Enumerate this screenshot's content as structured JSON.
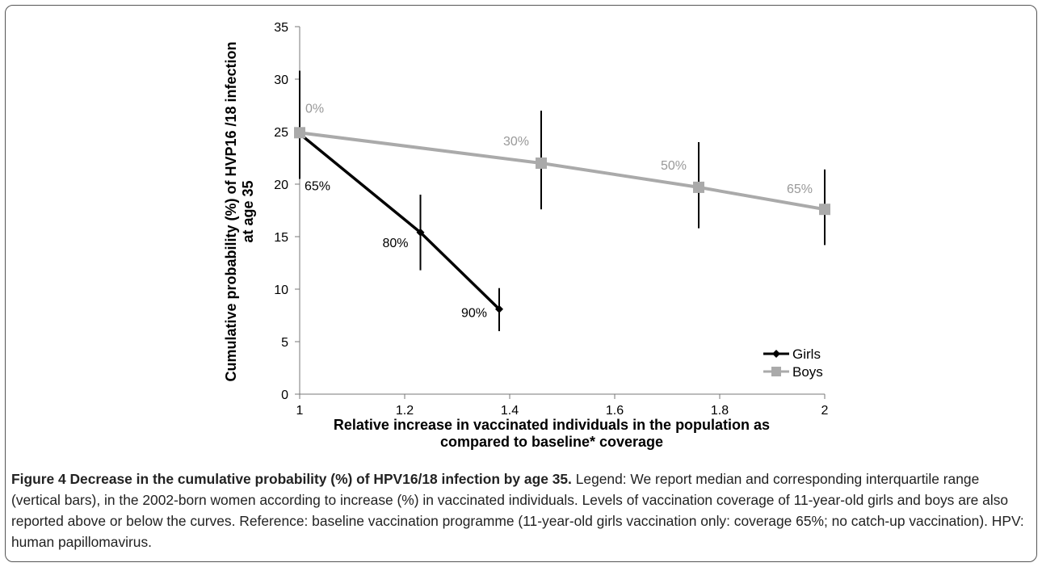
{
  "chart_data": {
    "type": "line",
    "xlabel": "Relative increase in vaccinated individuals in the  population as compared to baseline* coverage",
    "xlabel_lines": [
      "Relative increase in vaccinated individuals in the  population as",
      "compared to baseline* coverage"
    ],
    "ylabel": "Cumulative probability (%) of HVP16 /18 infection at age 35",
    "ylabel_lines": [
      "Cumulative probability (%) of HVP16 /18 infection",
      "at age 35"
    ],
    "xlim": [
      1,
      2
    ],
    "ylim": [
      0,
      35
    ],
    "x_ticks": [
      1,
      1.2,
      1.4,
      1.6,
      1.8,
      2
    ],
    "x_tick_labels": [
      "1",
      "1.2",
      "1.4",
      "1.6",
      "1.8",
      "2"
    ],
    "y_ticks": [
      0,
      5,
      10,
      15,
      20,
      25,
      30,
      35
    ],
    "y_tick_labels": [
      "0",
      "5",
      "10",
      "15",
      "20",
      "25",
      "30",
      "35"
    ],
    "grid": false,
    "legend_position": "bottom-right",
    "series": [
      {
        "name": "Girls",
        "color": "#000000",
        "marker": "diamond",
        "points": [
          {
            "x": 1.0,
            "y": 24.8,
            "err_low": 20.5,
            "err_high": 30.8,
            "label": "65%"
          },
          {
            "x": 1.23,
            "y": 15.4,
            "err_low": 11.8,
            "err_high": 19.0,
            "label": "80%"
          },
          {
            "x": 1.38,
            "y": 8.1,
            "err_low": 6.0,
            "err_high": 10.1,
            "label": "90%"
          }
        ]
      },
      {
        "name": "Boys",
        "color": "#aaaaaa",
        "marker": "square",
        "points": [
          {
            "x": 1.0,
            "y": 24.9,
            "err_low": 20.5,
            "err_high": 30.8,
            "label": "0%"
          },
          {
            "x": 1.46,
            "y": 22.0,
            "err_low": 17.6,
            "err_high": 27.0,
            "label": "30%"
          },
          {
            "x": 1.76,
            "y": 19.7,
            "err_low": 15.8,
            "err_high": 24.0,
            "label": "50%"
          },
          {
            "x": 2.0,
            "y": 17.6,
            "err_low": 14.2,
            "err_high": 21.4,
            "label": "65%"
          }
        ]
      }
    ]
  },
  "caption": {
    "title": "Figure 4 Decrease in the cumulative probability (%) of HPV16/18 infection by age 35.",
    "text": " Legend: We report median and corresponding interquartile range (vertical bars), in the 2002-born women according to increase (%) in vaccinated individuals. Levels of vaccination coverage of 11-year-old girls and boys are also reported above or below the curves. Reference: baseline vaccination programme (11-year-old girls vaccination only: coverage 65%; no catch-up vaccination). HPV: human papillomavirus."
  }
}
